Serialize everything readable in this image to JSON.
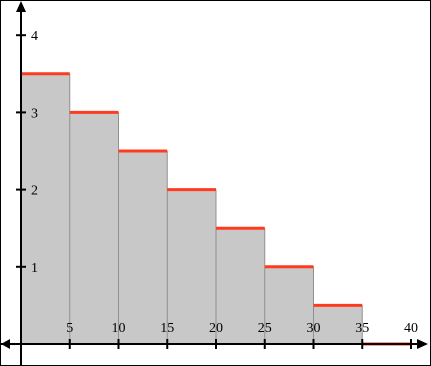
{
  "chart_data": {
    "type": "area",
    "title": "",
    "xlabel": "",
    "ylabel": "",
    "x_ticks": [
      "5",
      "10",
      "15",
      "20",
      "25",
      "30",
      "35",
      "40"
    ],
    "y_ticks": [
      "1",
      "2",
      "3",
      "4"
    ],
    "xlim": [
      0,
      43
    ],
    "ylim": [
      -0.1,
      4.35
    ],
    "grid": false,
    "legend": "none",
    "steps": [
      {
        "x_start": 0,
        "x_end": 5,
        "value": 3.5
      },
      {
        "x_start": 5,
        "x_end": 10,
        "value": 3.0
      },
      {
        "x_start": 10,
        "x_end": 15,
        "value": 2.5
      },
      {
        "x_start": 15,
        "x_end": 20,
        "value": 2.0
      },
      {
        "x_start": 20,
        "x_end": 25,
        "value": 1.5
      },
      {
        "x_start": 25,
        "x_end": 30,
        "value": 1.0
      },
      {
        "x_start": 30,
        "x_end": 35,
        "value": 0.5
      },
      {
        "x_start": 35,
        "x_end": 40,
        "value": 0.0
      }
    ],
    "colors": {
      "fill": "#c8c8c8",
      "step_line": "#ff3b1f",
      "axis": "#000000"
    }
  }
}
